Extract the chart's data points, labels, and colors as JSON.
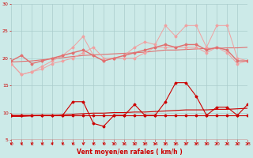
{
  "x": [
    0,
    1,
    2,
    3,
    4,
    5,
    6,
    7,
    8,
    9,
    10,
    11,
    12,
    13,
    14,
    15,
    16,
    17,
    18,
    19,
    20,
    21,
    22,
    23
  ],
  "series": [
    {
      "name": "rafales_max_light",
      "color": "#f0a0a0",
      "linewidth": 0.7,
      "marker": "D",
      "markersize": 1.5,
      "y": [
        19,
        17,
        17.5,
        18.5,
        19.5,
        20.5,
        22,
        24,
        20.5,
        19.5,
        20,
        20.5,
        22,
        23,
        22.5,
        26,
        24,
        26,
        26,
        22,
        26,
        26,
        20,
        19.5
      ]
    },
    {
      "name": "moy_max_light",
      "color": "#f0a0a0",
      "linewidth": 0.7,
      "marker": "D",
      "markersize": 1.5,
      "y": [
        19,
        17,
        17.5,
        18,
        19,
        19.5,
        20,
        21,
        22,
        20,
        20,
        20,
        20,
        21,
        22,
        22,
        22,
        22,
        22,
        21,
        22,
        21,
        19,
        19.5
      ]
    },
    {
      "name": "moy_medium",
      "color": "#e07070",
      "linewidth": 1.0,
      "marker": "D",
      "markersize": 1.5,
      "y": [
        19.5,
        20.5,
        19,
        19.5,
        20,
        20.5,
        21,
        21.5,
        20.5,
        19.5,
        20,
        20.5,
        21,
        21.5,
        22,
        22.5,
        22,
        22.5,
        22.5,
        21.5,
        22,
        21.5,
        19.5,
        19.5
      ]
    },
    {
      "name": "trend_medium",
      "color": "#e07070",
      "linewidth": 0.8,
      "marker": null,
      "markersize": 0,
      "y": [
        19.3,
        19.4,
        19.5,
        19.7,
        19.9,
        20.1,
        20.3,
        20.5,
        20.6,
        20.7,
        20.8,
        20.9,
        21.0,
        21.1,
        21.3,
        21.5,
        21.5,
        21.6,
        21.7,
        21.8,
        21.8,
        21.9,
        21.9,
        22.0
      ]
    },
    {
      "name": "vent_dark",
      "color": "#cc0000",
      "linewidth": 0.8,
      "marker": "D",
      "markersize": 1.5,
      "y": [
        9.5,
        9.5,
        9.5,
        9.5,
        9.5,
        9.5,
        12,
        12,
        8,
        7.5,
        9.5,
        9.5,
        11.5,
        9.5,
        9.5,
        12,
        15.5,
        15.5,
        13,
        9.5,
        11,
        11,
        9.5,
        11.5
      ]
    },
    {
      "name": "trend_dark",
      "color": "#cc0000",
      "linewidth": 0.8,
      "marker": null,
      "markersize": 0,
      "y": [
        9.3,
        9.3,
        9.4,
        9.5,
        9.5,
        9.6,
        9.7,
        9.8,
        9.9,
        9.9,
        10.0,
        10.0,
        10.1,
        10.1,
        10.2,
        10.3,
        10.4,
        10.5,
        10.5,
        10.5,
        10.6,
        10.6,
        10.7,
        10.8
      ]
    },
    {
      "name": "base_dark",
      "color": "#cc0000",
      "linewidth": 0.8,
      "marker": "D",
      "markersize": 1.5,
      "y": [
        9.5,
        9.5,
        9.5,
        9.5,
        9.5,
        9.5,
        9.5,
        9.5,
        9.5,
        9.5,
        9.5,
        9.5,
        9.5,
        9.5,
        9.5,
        9.5,
        9.5,
        9.5,
        9.5,
        9.5,
        9.5,
        9.5,
        9.5,
        9.5
      ]
    }
  ],
  "xlabel": "Vent moyen/en rafales ( km/h )",
  "xlim": [
    0,
    23
  ],
  "ylim": [
    5,
    30
  ],
  "yticks": [
    5,
    10,
    15,
    20,
    25,
    30
  ],
  "xticks": [
    0,
    1,
    2,
    3,
    4,
    5,
    6,
    7,
    8,
    9,
    10,
    11,
    12,
    13,
    14,
    15,
    16,
    17,
    18,
    19,
    20,
    21,
    22,
    23
  ],
  "bg_color": "#cceae8",
  "grid_color": "#aacccc",
  "tick_color": "#cc0000",
  "xlabel_color": "#cc0000"
}
